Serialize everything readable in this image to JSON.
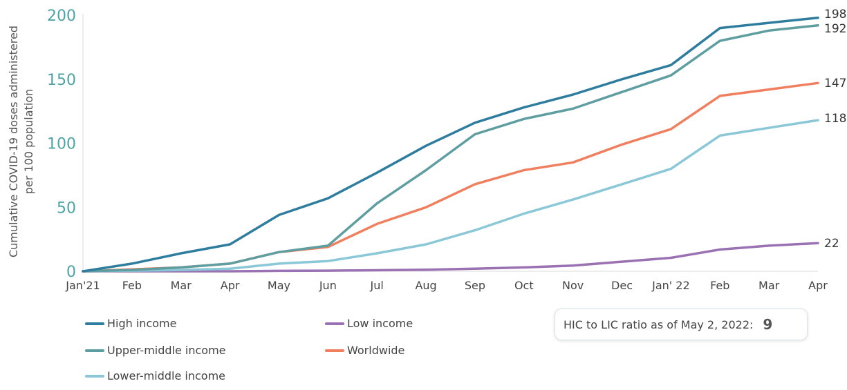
{
  "chart_data": {
    "type": "line",
    "ylabel": "Cumulative COVID-19 doses administered per 100 population",
    "ylabel_lines": [
      "Cumulative COVID-19 doses administered",
      "per 100 population"
    ],
    "ylim": [
      0,
      200
    ],
    "yticks": [
      0,
      50,
      100,
      150,
      200
    ],
    "grid": false,
    "legend_position": "bottom-left",
    "categories": [
      "Jan'21",
      "Feb",
      "Mar",
      "Apr",
      "May",
      "Jun",
      "Jul",
      "Aug",
      "Sep",
      "Oct",
      "Nov",
      "Dec",
      "Jan' 22",
      "Feb",
      "Mar",
      "Apr"
    ],
    "series": [
      {
        "name": "High income",
        "color": "#2e7d9e",
        "end_label": "198",
        "values": [
          0,
          6,
          14,
          21,
          44,
          57,
          77,
          98,
          116,
          128,
          138,
          150,
          161,
          190,
          194,
          198
        ]
      },
      {
        "name": "Upper-middle income",
        "color": "#5e9ea0",
        "end_label": "192",
        "values": [
          0,
          1,
          3,
          6,
          15,
          20,
          53,
          79,
          107,
          119,
          127,
          140,
          153,
          180,
          188,
          192
        ]
      },
      {
        "name": "Worldwide",
        "color": "#ef7f5f",
        "end_label": "147",
        "values": [
          0,
          1.5,
          3,
          6,
          15,
          19,
          37,
          50,
          68,
          79,
          85,
          99,
          111,
          137,
          142,
          147
        ]
      },
      {
        "name": "Lower-middle income",
        "color": "#8ac8d8",
        "end_label": "118",
        "values": [
          0,
          0.5,
          1,
          2,
          6,
          8,
          14,
          21,
          32,
          45,
          56,
          68,
          80,
          106,
          112,
          118
        ]
      },
      {
        "name": "Low income",
        "color": "#9a71b3",
        "end_label": "22",
        "values": [
          0,
          0,
          0,
          0,
          0.3,
          0.5,
          0.8,
          1.2,
          2,
          3,
          4.5,
          7.5,
          10.5,
          17,
          20,
          22
        ]
      }
    ],
    "legend_order": [
      [
        "High income",
        "Low income"
      ],
      [
        "Upper-middle income",
        "Worldwide"
      ],
      [
        "Lower-middle income"
      ]
    ]
  },
  "ratio_box": {
    "label": "HIC to LIC ratio as of May 2, 2022:",
    "value": "9"
  }
}
